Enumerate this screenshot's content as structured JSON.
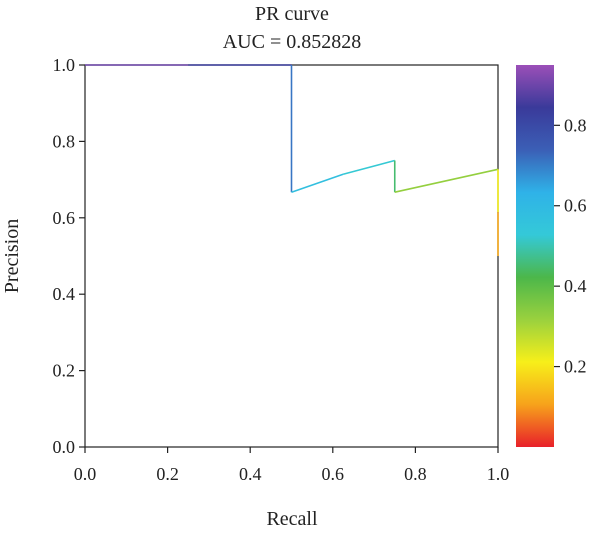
{
  "chart_data": {
    "type": "line",
    "title": "PR curve",
    "subtitle": "AUC = 0.852828",
    "xlabel": "Recall",
    "ylabel": "Precision",
    "xlim": [
      0,
      1
    ],
    "ylim": [
      0,
      1
    ],
    "x_ticks": [
      "0.0",
      "0.2",
      "0.4",
      "0.6",
      "0.8",
      "1.0"
    ],
    "y_ticks": [
      "0.0",
      "0.2",
      "0.4",
      "0.6",
      "0.8",
      "1.0"
    ],
    "grid": false,
    "colorbar": {
      "range": [
        0,
        0.95
      ],
      "ticks": [
        "0.2",
        "0.4",
        "0.6",
        "0.8"
      ],
      "colormap": [
        "#e8202a",
        "#f7a21b",
        "#f7ef1a",
        "#9ad13e",
        "#4cb74a",
        "#34c9d8",
        "#2fb2e8",
        "#3b5fb6",
        "#3a3a9a",
        "#9b4fb8"
      ]
    },
    "points": [
      {
        "recall": 0.0,
        "precision": 1.0,
        "threshold": 0.95
      },
      {
        "recall": 0.25,
        "precision": 1.0,
        "threshold": 0.85
      },
      {
        "recall": 0.5,
        "precision": 1.0,
        "threshold": 0.82
      },
      {
        "recall": 0.5,
        "precision": 0.667,
        "threshold": 0.6
      },
      {
        "recall": 0.625,
        "precision": 0.714,
        "threshold": 0.55
      },
      {
        "recall": 0.75,
        "precision": 0.75,
        "threshold": 0.5
      },
      {
        "recall": 0.75,
        "precision": 0.667,
        "threshold": 0.4
      },
      {
        "recall": 1.0,
        "precision": 0.727,
        "threshold": 0.25
      },
      {
        "recall": 1.0,
        "precision": 0.615,
        "threshold": 0.18
      },
      {
        "recall": 1.0,
        "precision": 0.5,
        "threshold": 0.05
      }
    ]
  }
}
